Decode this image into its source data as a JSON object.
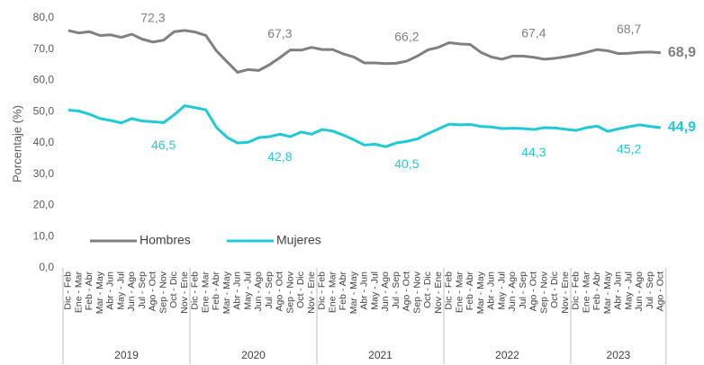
{
  "chart_data": {
    "type": "line",
    "y_label": "Porcentaje (%)",
    "categories": [
      "Dic - Feb",
      "Ene - Mar",
      "Feb - Abr",
      "Mar - May",
      "Abr - Jun",
      "May - Jul",
      "Jun - Ago",
      "Jul - Sep",
      "Ago - Oct",
      "Sep - Nov",
      "Oct - Dic",
      "Nov - Ene",
      "Dic - Feb",
      "Ene - Mar",
      "Feb - Abr",
      "Mar - May",
      "Abr - Jun",
      "May - Jul",
      "Jun - Ago",
      "Jul - Sep",
      "Ago - Oct",
      "Sep - Nov",
      "Oct - Dic",
      "Nov - Ene",
      "Dic - Feb",
      "Ene - Mar",
      "Feb - Abr",
      "Mar - May",
      "Abr - Jun",
      "May - Jul",
      "Jun - Ago",
      "Jul - Sep",
      "Ago - Oct",
      "Sep - Nov",
      "Oct - Dic",
      "Nov - Ene",
      "Dic - Feb",
      "Ene - Mar",
      "Feb - Abr",
      "Mar - May",
      "Abr - Jun",
      "May - Jul",
      "Jun - Ago",
      "Jul - Sep",
      "Ago - Oct",
      "Sep - Nov",
      "Oct - Dic",
      "Nov - Ene",
      "Dic - Feb",
      "Ene - Mar",
      "Feb - Abr",
      "Mar - May",
      "Abr - Jun",
      "May - Jul",
      "Jun - Ago",
      "Jul - Sep",
      "Ago - Oct"
    ],
    "groups": [
      "2019",
      "2020",
      "2021",
      "2022",
      "2023"
    ],
    "series": [
      {
        "name": "Hombres",
        "color": "#808080",
        "values": [
          76.0,
          75.2,
          75.6,
          74.4,
          74.6,
          73.8,
          74.8,
          73.2,
          72.3,
          72.9,
          75.6,
          76.0,
          75.5,
          74.4,
          69.5,
          66.0,
          62.6,
          63.5,
          63.2,
          65.0,
          67.3,
          69.8,
          69.7,
          70.6,
          69.9,
          69.9,
          68.5,
          67.5,
          65.6,
          65.6,
          65.4,
          65.5,
          66.2,
          67.8,
          69.8,
          70.6,
          72.1,
          71.7,
          71.5,
          69.0,
          67.5,
          66.8,
          67.8,
          67.8,
          67.4,
          66.8,
          67.1,
          67.6,
          68.2,
          69.0,
          69.9,
          69.5,
          68.6,
          68.7,
          69.0,
          69.1,
          68.9
        ],
        "value_labels": [
          null,
          null,
          null,
          null,
          null,
          null,
          null,
          null,
          "72,3",
          null,
          null,
          null,
          null,
          null,
          null,
          null,
          null,
          null,
          null,
          null,
          "67,3",
          null,
          null,
          null,
          null,
          null,
          null,
          null,
          null,
          null,
          null,
          null,
          "66,2",
          null,
          null,
          null,
          null,
          null,
          null,
          null,
          null,
          null,
          null,
          null,
          "67,4",
          null,
          null,
          null,
          null,
          null,
          null,
          null,
          null,
          "68,7",
          null,
          null,
          "68,9"
        ]
      },
      {
        "name": "Mujeres",
        "color": "#1fcad8",
        "values": [
          50.5,
          50.2,
          49.2,
          47.8,
          47.2,
          46.4,
          47.8,
          47.0,
          46.8,
          46.5,
          49.0,
          51.9,
          51.3,
          50.6,
          45.0,
          41.8,
          40.0,
          40.2,
          41.7,
          42.0,
          42.8,
          42.0,
          43.5,
          42.8,
          44.3,
          43.8,
          42.5,
          41.0,
          39.3,
          39.6,
          38.8,
          40.0,
          40.5,
          41.3,
          43.0,
          44.5,
          46.0,
          45.8,
          45.9,
          45.3,
          45.1,
          44.6,
          44.7,
          44.6,
          44.3,
          44.9,
          44.8,
          44.4,
          44.0,
          44.9,
          45.4,
          43.7,
          44.5,
          45.2,
          45.8,
          45.3,
          44.9
        ],
        "value_labels": [
          null,
          null,
          null,
          null,
          null,
          null,
          null,
          null,
          null,
          "46,5",
          null,
          null,
          null,
          null,
          null,
          null,
          null,
          null,
          null,
          null,
          "42,8",
          null,
          null,
          null,
          null,
          null,
          null,
          null,
          null,
          null,
          null,
          null,
          "40,5",
          null,
          null,
          null,
          null,
          null,
          null,
          null,
          null,
          null,
          null,
          null,
          "44,3",
          null,
          null,
          null,
          null,
          null,
          null,
          null,
          null,
          "45,2",
          null,
          null,
          "44,9"
        ]
      }
    ],
    "ylim": [
      0,
      80
    ],
    "yticks": [
      {
        "value": 0,
        "label": "0,0"
      },
      {
        "value": 10,
        "label": "10,0"
      },
      {
        "value": 20,
        "label": "20,0"
      },
      {
        "value": 30,
        "label": "30,0"
      },
      {
        "value": 40,
        "label": "40,0"
      },
      {
        "value": 50,
        "label": "50,0"
      },
      {
        "value": 60,
        "label": "60,0"
      },
      {
        "value": 70,
        "label": "70,0"
      },
      {
        "value": 80,
        "label": "80,0"
      }
    ],
    "legend": "lower left"
  }
}
